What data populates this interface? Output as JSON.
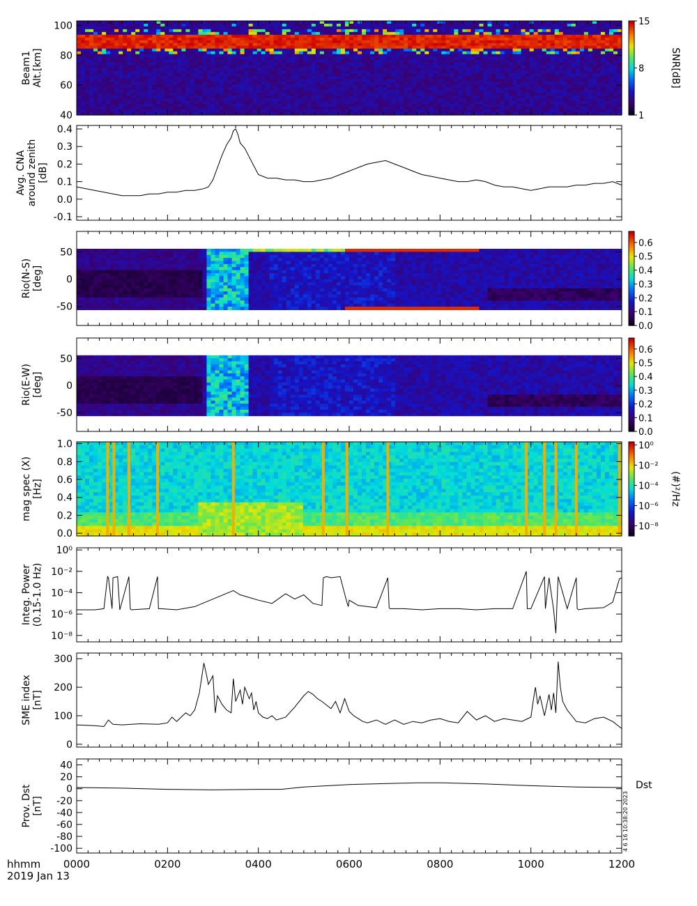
{
  "figure": {
    "time_axis": {
      "ticks": [
        "0000",
        "0200",
        "0400",
        "0600",
        "0800",
        "1000",
        "1200"
      ],
      "unit_label": "hhmm",
      "date_label": "2019 Jan 13",
      "range": [
        0,
        1200
      ]
    },
    "side_note": "4  6 16 10:38:20  2023"
  },
  "chart_data": [
    {
      "id": "beam1",
      "type": "heatmap",
      "ylabel": [
        "Beam1",
        "Alt.[km]"
      ],
      "y_ticks": [
        "40",
        "60",
        "80",
        "100"
      ],
      "ylim": [
        40,
        103
      ],
      "colorbar": {
        "label": "SNR[dB]",
        "ticks": [
          "1",
          "8",
          "15"
        ],
        "range": [
          1,
          15
        ]
      },
      "features": {
        "band_center_km": 89,
        "band_half_width_km": 4,
        "background_snr": 2,
        "band_snr": 15
      }
    },
    {
      "id": "cna",
      "type": "line",
      "ylabel": [
        "Avg. CNA",
        "around zenith",
        "[dB]"
      ],
      "y_ticks": [
        "-0.1",
        "0.0",
        "0.1",
        "0.2",
        "0.3",
        "0.4"
      ],
      "ylim": [
        -0.12,
        0.42
      ],
      "x": [
        0,
        20,
        40,
        60,
        80,
        100,
        120,
        140,
        160,
        180,
        200,
        220,
        240,
        260,
        280,
        290,
        300,
        310,
        320,
        330,
        340,
        345,
        350,
        355,
        360,
        370,
        380,
        390,
        400,
        420,
        440,
        460,
        480,
        500,
        520,
        540,
        560,
        580,
        600,
        620,
        640,
        660,
        680,
        700,
        720,
        740,
        760,
        780,
        800,
        820,
        840,
        860,
        880,
        900,
        920,
        940,
        960,
        980,
        1000,
        1020,
        1040,
        1060,
        1080,
        1100,
        1120,
        1140,
        1160,
        1180,
        1200
      ],
      "y": [
        0.07,
        0.06,
        0.05,
        0.04,
        0.03,
        0.02,
        0.02,
        0.02,
        0.03,
        0.03,
        0.04,
        0.04,
        0.05,
        0.05,
        0.06,
        0.07,
        0.11,
        0.18,
        0.25,
        0.31,
        0.35,
        0.39,
        0.4,
        0.37,
        0.32,
        0.29,
        0.24,
        0.19,
        0.14,
        0.12,
        0.12,
        0.11,
        0.11,
        0.1,
        0.1,
        0.11,
        0.12,
        0.14,
        0.16,
        0.18,
        0.2,
        0.21,
        0.22,
        0.2,
        0.18,
        0.16,
        0.14,
        0.13,
        0.12,
        0.11,
        0.1,
        0.1,
        0.11,
        0.1,
        0.08,
        0.07,
        0.07,
        0.06,
        0.05,
        0.06,
        0.07,
        0.07,
        0.07,
        0.08,
        0.08,
        0.09,
        0.09,
        0.1,
        0.08
      ]
    },
    {
      "id": "rio_ns",
      "type": "heatmap",
      "ylabel": [
        "Rio(N-S)",
        "[deg]"
      ],
      "y_ticks": [
        "-50",
        "0",
        "50"
      ],
      "ylim": [
        -85,
        88
      ],
      "colorbar": {
        "label": "",
        "ticks": [
          "0.0",
          "0.1",
          "0.2",
          "0.3",
          "0.4",
          "0.5",
          "0.6"
        ],
        "range": [
          0,
          0.68
        ]
      }
    },
    {
      "id": "rio_ew",
      "type": "heatmap",
      "ylabel": [
        "Rio(E-W)",
        "[deg]"
      ],
      "y_ticks": [
        "-50",
        "0",
        "50"
      ],
      "ylim": [
        -85,
        88
      ],
      "colorbar": {
        "label": "",
        "ticks": [
          "0.0",
          "0.1",
          "0.2",
          "0.3",
          "0.4",
          "0.5",
          "0.6"
        ],
        "range": [
          0,
          0.68
        ]
      }
    },
    {
      "id": "mag_spec",
      "type": "heatmap",
      "ylabel": [
        "mag spec (X)",
        "[Hz]"
      ],
      "y_ticks": [
        "0.0",
        "0.2",
        "0.4",
        "0.6",
        "0.8",
        "1.0"
      ],
      "ylim": [
        -0.03,
        1.02
      ],
      "colorbar": {
        "label": "(#)²/Hz",
        "ticks": [
          "10⁻⁸",
          "10⁻⁶",
          "10⁻⁴",
          "10⁻²",
          "10⁰"
        ],
        "range": [
          -9,
          0.3
        ]
      },
      "spikes_hhmm": [
        68,
        82,
        115,
        178,
        345,
        543,
        595,
        685,
        990,
        1030,
        1055,
        1100,
        1195
      ]
    },
    {
      "id": "integ_power",
      "type": "line",
      "ylabel": [
        "Integ. Power",
        "(0.15-1.0 Hz)"
      ],
      "y_ticks": [
        "10⁻⁸",
        "10⁻⁶",
        "10⁻⁴",
        "10⁻²",
        "10⁰"
      ],
      "log_scale": true,
      "ylim_log10": [
        -8.6,
        0.2
      ],
      "x": [
        0,
        40,
        60,
        68,
        70,
        78,
        80,
        90,
        95,
        115,
        118,
        120,
        160,
        178,
        180,
        185,
        220,
        260,
        300,
        345,
        360,
        400,
        430,
        460,
        480,
        500,
        520,
        540,
        543,
        550,
        560,
        580,
        595,
        598,
        600,
        620,
        640,
        660,
        685,
        688,
        690,
        720,
        760,
        800,
        840,
        880,
        920,
        960,
        990,
        992,
        1000,
        1030,
        1032,
        1040,
        1050,
        1055,
        1057,
        1060,
        1080,
        1100,
        1102,
        1105,
        1120,
        1160,
        1180,
        1195,
        1200
      ],
      "y": [
        -5.6,
        -5.6,
        -5.5,
        -2.5,
        -2.6,
        -5.5,
        -2.6,
        -2.5,
        -5.6,
        -2.5,
        -5.5,
        -5.6,
        -5.5,
        -2.5,
        -5.5,
        -5.5,
        -5.6,
        -5.3,
        -4.6,
        -3.8,
        -4.2,
        -4.7,
        -5.0,
        -4.1,
        -4.6,
        -4.2,
        -5.0,
        -5.2,
        -2.6,
        -2.5,
        -2.6,
        -2.5,
        -4.9,
        -5.3,
        -4.7,
        -5.2,
        -5.3,
        -5.4,
        -2.6,
        -5.4,
        -5.5,
        -5.5,
        -5.6,
        -5.5,
        -5.5,
        -5.6,
        -5.5,
        -5.5,
        -2.0,
        -5.5,
        -5.5,
        -2.5,
        -5.5,
        -2.6,
        -5.6,
        -7.8,
        -5.5,
        -2.5,
        -5.5,
        -2.6,
        -5.5,
        -5.6,
        -5.5,
        -5.4,
        -4.9,
        -2.7,
        -2.6
      ]
    },
    {
      "id": "sme",
      "type": "line",
      "ylabel": [
        "SME index",
        "[nT]"
      ],
      "y_ticks": [
        "0",
        "100",
        "200",
        "300"
      ],
      "ylim": [
        -10,
        320
      ],
      "x": [
        0,
        40,
        60,
        70,
        80,
        100,
        140,
        180,
        200,
        210,
        220,
        230,
        240,
        250,
        260,
        270,
        280,
        285,
        290,
        300,
        305,
        310,
        320,
        330,
        340,
        345,
        350,
        360,
        365,
        370,
        380,
        385,
        390,
        395,
        400,
        410,
        420,
        430,
        440,
        460,
        480,
        500,
        510,
        520,
        530,
        540,
        560,
        570,
        580,
        590,
        600,
        610,
        620,
        630,
        640,
        660,
        680,
        700,
        720,
        740,
        760,
        780,
        800,
        820,
        840,
        860,
        880,
        900,
        920,
        940,
        960,
        980,
        1000,
        1005,
        1010,
        1015,
        1020,
        1030,
        1040,
        1045,
        1050,
        1055,
        1060,
        1065,
        1070,
        1080,
        1090,
        1100,
        1120,
        1140,
        1160,
        1180,
        1200
      ],
      "y": [
        68,
        65,
        62,
        85,
        70,
        68,
        72,
        70,
        75,
        95,
        80,
        95,
        110,
        100,
        120,
        180,
        285,
        250,
        210,
        240,
        110,
        170,
        140,
        120,
        110,
        230,
        150,
        190,
        140,
        200,
        160,
        180,
        120,
        150,
        110,
        95,
        90,
        100,
        85,
        95,
        130,
        170,
        185,
        175,
        160,
        150,
        125,
        150,
        110,
        160,
        115,
        100,
        90,
        80,
        75,
        85,
        70,
        85,
        70,
        80,
        75,
        85,
        90,
        80,
        75,
        115,
        85,
        100,
        80,
        90,
        85,
        80,
        95,
        150,
        200,
        140,
        170,
        100,
        175,
        120,
        180,
        110,
        290,
        200,
        150,
        120,
        100,
        80,
        75,
        90,
        95,
        80,
        55
      ]
    },
    {
      "id": "dst",
      "type": "line",
      "ylabel": [
        "Prov. Dst",
        "[nT]"
      ],
      "y_ticks": [
        "-100",
        "-80",
        "-60",
        "-40",
        "-20",
        "0",
        "20",
        "40"
      ],
      "ylim": [
        -108,
        50
      ],
      "legend": "Dst",
      "x": [
        0,
        100,
        200,
        300,
        400,
        450,
        500,
        600,
        700,
        750,
        800,
        900,
        1000,
        1100,
        1200
      ],
      "y": [
        2,
        1,
        -1,
        -2,
        -1,
        -1,
        3,
        7,
        9,
        10,
        10,
        8,
        5,
        3,
        2
      ]
    }
  ]
}
